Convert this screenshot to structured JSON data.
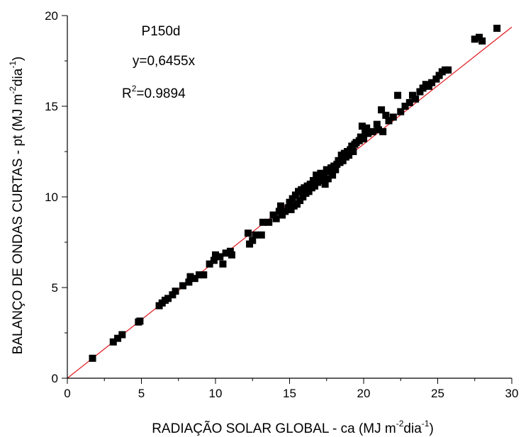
{
  "chart_data": {
    "type": "scatter",
    "xlabel": "RADIAÇÃO SOLAR GLOBAL - ca (MJ m",
    "xlabel_parts": [
      "RADIAÇÃO SOLAR GLOBAL - ca (MJ m",
      "-2",
      "dia",
      "-1",
      ")"
    ],
    "ylabel_parts": [
      "BALANÇO DE ONDAS CURTAS - pt (MJ m",
      "-2",
      "dia",
      "-1",
      ")"
    ],
    "xlim": [
      0,
      30
    ],
    "ylim": [
      0,
      20
    ],
    "xticks": [
      "0",
      "5",
      "10",
      "15",
      "20",
      "25",
      "30"
    ],
    "yticks": [
      "0",
      "5",
      "10",
      "15",
      "20"
    ],
    "annotations": {
      "label": "P150d",
      "equation": "y=0,6455x",
      "r2_prefix": "R",
      "r2_sup": "2",
      "r2_value": "=0.9894"
    },
    "fit_line": {
      "slope": 0.6455,
      "intercept": 0,
      "color": "#e0161b"
    },
    "marker_color": "#000000",
    "series": [
      {
        "points": [
          [
            1.7,
            1.1
          ],
          [
            3.1,
            2.0
          ],
          [
            3.4,
            2.2
          ],
          [
            3.7,
            2.4
          ],
          [
            4.8,
            3.1
          ],
          [
            4.9,
            3.15
          ],
          [
            6.2,
            4.0
          ],
          [
            6.4,
            4.15
          ],
          [
            6.6,
            4.3
          ],
          [
            6.8,
            4.4
          ],
          [
            7.1,
            4.6
          ],
          [
            7.3,
            4.8
          ],
          [
            7.8,
            5.1
          ],
          [
            8.2,
            5.3
          ],
          [
            8.3,
            5.6
          ],
          [
            8.6,
            5.5
          ],
          [
            8.9,
            5.7
          ],
          [
            9.2,
            5.7
          ],
          [
            9.6,
            6.3
          ],
          [
            9.9,
            6.5
          ],
          [
            10.0,
            6.8
          ],
          [
            10.3,
            6.7
          ],
          [
            10.5,
            6.3
          ],
          [
            10.7,
            6.9
          ],
          [
            11.0,
            7.0
          ],
          [
            11.1,
            6.8
          ],
          [
            12.2,
            8.0
          ],
          [
            12.3,
            7.4
          ],
          [
            12.5,
            7.6
          ],
          [
            12.7,
            7.9
          ],
          [
            13.1,
            7.9
          ],
          [
            13.2,
            8.6
          ],
          [
            13.6,
            8.6
          ],
          [
            13.9,
            9.0
          ],
          [
            14.1,
            8.8
          ],
          [
            14.3,
            9.2
          ],
          [
            14.4,
            9.5
          ],
          [
            14.5,
            9.0
          ],
          [
            14.7,
            9.2
          ],
          [
            14.9,
            9.4
          ],
          [
            15.0,
            9.7
          ],
          [
            15.1,
            9.3
          ],
          [
            15.2,
            9.9
          ],
          [
            15.3,
            9.5
          ],
          [
            15.4,
            10.1
          ],
          [
            15.5,
            9.6
          ],
          [
            15.6,
            10.3
          ],
          [
            15.7,
            9.8
          ],
          [
            15.8,
            10.4
          ],
          [
            15.9,
            10.0
          ],
          [
            16.0,
            10.5
          ],
          [
            16.1,
            10.2
          ],
          [
            16.2,
            10.6
          ],
          [
            16.3,
            10.3
          ],
          [
            16.4,
            10.7
          ],
          [
            16.5,
            10.5
          ],
          [
            16.6,
            10.9
          ],
          [
            16.7,
            10.6
          ],
          [
            16.8,
            11.2
          ],
          [
            16.9,
            10.8
          ],
          [
            17.0,
            11.0
          ],
          [
            17.1,
            11.3
          ],
          [
            17.2,
            10.9
          ],
          [
            17.3,
            11.2
          ],
          [
            17.4,
            10.7
          ],
          [
            17.5,
            11.5
          ],
          [
            17.6,
            11.0
          ],
          [
            17.7,
            11.4
          ],
          [
            17.8,
            11.6
          ],
          [
            17.9,
            11.2
          ],
          [
            18.0,
            11.7
          ],
          [
            18.1,
            11.5
          ],
          [
            18.2,
            11.8
          ],
          [
            18.3,
            12.0
          ],
          [
            18.4,
            11.9
          ],
          [
            18.5,
            12.3
          ],
          [
            18.6,
            12.0
          ],
          [
            18.7,
            12.4
          ],
          [
            18.8,
            12.2
          ],
          [
            18.9,
            12.5
          ],
          [
            19.0,
            12.3
          ],
          [
            19.1,
            12.6
          ],
          [
            19.2,
            12.8
          ],
          [
            19.3,
            12.5
          ],
          [
            19.4,
            12.9
          ],
          [
            19.5,
            13.0
          ],
          [
            19.7,
            13.1
          ],
          [
            19.8,
            13.3
          ],
          [
            19.9,
            13.9
          ],
          [
            20.0,
            13.2
          ],
          [
            20.1,
            13.6
          ],
          [
            20.2,
            13.8
          ],
          [
            20.3,
            13.5
          ],
          [
            20.6,
            13.6
          ],
          [
            20.9,
            14.0
          ],
          [
            21.0,
            13.7
          ],
          [
            21.2,
            14.8
          ],
          [
            21.3,
            13.6
          ],
          [
            21.5,
            14.5
          ],
          [
            21.7,
            14.2
          ],
          [
            22.0,
            14.4
          ],
          [
            22.3,
            15.6
          ],
          [
            22.5,
            14.7
          ],
          [
            22.8,
            15.0
          ],
          [
            23.1,
            15.2
          ],
          [
            23.3,
            15.6
          ],
          [
            23.5,
            15.4
          ],
          [
            23.8,
            15.8
          ],
          [
            24.0,
            16.0
          ],
          [
            24.2,
            16.2
          ],
          [
            24.4,
            16.1
          ],
          [
            24.6,
            16.3
          ],
          [
            24.9,
            16.5
          ],
          [
            25.1,
            16.7
          ],
          [
            25.3,
            16.9
          ],
          [
            25.5,
            17.0
          ],
          [
            25.7,
            17.0
          ],
          [
            27.5,
            18.7
          ],
          [
            27.8,
            18.8
          ],
          [
            28.0,
            18.6
          ],
          [
            29.0,
            19.3
          ]
        ]
      }
    ]
  }
}
